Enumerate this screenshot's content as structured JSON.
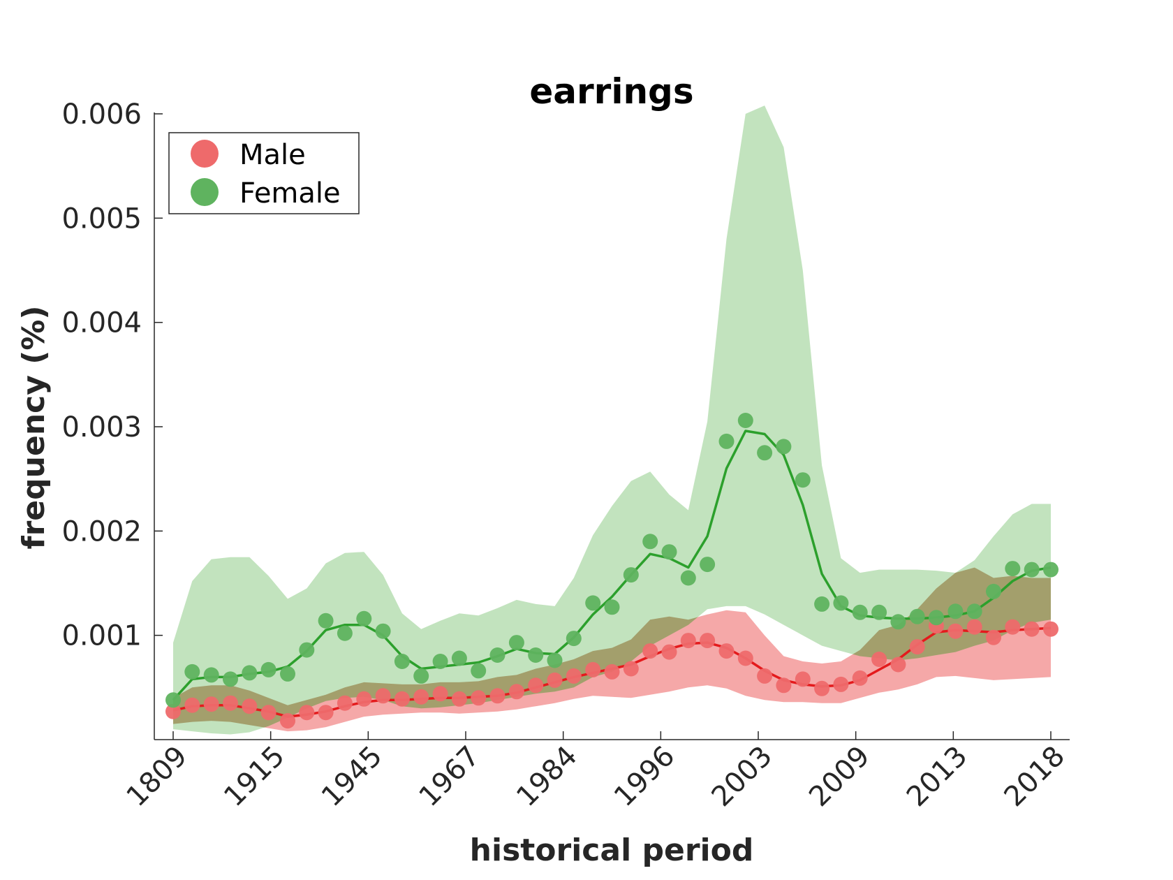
{
  "chart_data": {
    "type": "line",
    "title": "earrings",
    "xlabel": "historical period",
    "ylabel": "frequency (%)",
    "categories": [
      "1809",
      "1915",
      "1945",
      "1967",
      "1984",
      "1996",
      "2003",
      "2009",
      "2013",
      "2018"
    ],
    "point_count": 47,
    "ylim": [
      0,
      0.006
    ],
    "yticks": [
      0.001,
      0.002,
      0.003,
      0.004,
      0.005,
      0.006
    ],
    "ytick_labels": [
      "0.001",
      "0.002",
      "0.003",
      "0.004",
      "0.005",
      "0.006"
    ],
    "legend_position": "top-left",
    "grid": false,
    "series": [
      {
        "name": "Male",
        "color": "#e41a1c",
        "marker_color": "#ee6a6b",
        "band_color": "#f4a3a3",
        "points": [
          0.00027,
          0.00033,
          0.00034,
          0.00035,
          0.00032,
          0.00026,
          0.00018,
          0.00026,
          0.00026,
          0.00035,
          0.00039,
          0.00042,
          0.00039,
          0.00041,
          0.00044,
          0.00039,
          0.0004,
          0.00042,
          0.00046,
          0.00052,
          0.00057,
          0.00061,
          0.00067,
          0.00065,
          0.00068,
          0.00085,
          0.00084,
          0.00095,
          0.00095,
          0.00085,
          0.00078,
          0.00061,
          0.00052,
          0.00058,
          0.00049,
          0.00053,
          0.00059,
          0.00077,
          0.00072,
          0.00089,
          0.00109,
          0.00104,
          0.00108,
          0.00098,
          0.00108,
          0.00106,
          0.00106
        ],
        "line": [
          0.00028,
          0.00032,
          0.00033,
          0.00033,
          0.0003,
          0.00027,
          0.00022,
          0.00024,
          0.00027,
          0.00032,
          0.00036,
          0.00038,
          0.00038,
          0.00039,
          0.0004,
          0.0004,
          0.00041,
          0.00042,
          0.00045,
          0.0005,
          0.00055,
          0.0006,
          0.00064,
          0.00068,
          0.00072,
          0.0008,
          0.00087,
          0.00092,
          0.00093,
          0.00088,
          0.00078,
          0.00066,
          0.00057,
          0.00053,
          0.00051,
          0.00052,
          0.00057,
          0.00067,
          0.00077,
          0.00091,
          0.00103,
          0.00105,
          0.00104,
          0.00103,
          0.00105,
          0.00106,
          0.00107
        ],
        "band_low": [
          0.00015,
          0.00017,
          0.00018,
          0.00017,
          0.00014,
          0.00011,
          8e-05,
          9e-05,
          0.00012,
          0.00017,
          0.00022,
          0.00024,
          0.00025,
          0.00026,
          0.00026,
          0.00025,
          0.00026,
          0.00027,
          0.00029,
          0.00032,
          0.00035,
          0.00039,
          0.00042,
          0.00041,
          0.0004,
          0.00043,
          0.00046,
          0.0005,
          0.00052,
          0.00049,
          0.00042,
          0.00038,
          0.00036,
          0.00036,
          0.00035,
          0.00035,
          0.0004,
          0.00045,
          0.00048,
          0.00053,
          0.0006,
          0.00061,
          0.00059,
          0.00057,
          0.00058,
          0.00059,
          0.0006
        ],
        "band_high": [
          0.0004,
          0.0005,
          0.00052,
          0.00052,
          0.00047,
          0.0004,
          0.00033,
          0.00038,
          0.00043,
          0.0005,
          0.00055,
          0.00054,
          0.00053,
          0.00053,
          0.00055,
          0.00055,
          0.00056,
          0.0006,
          0.00062,
          0.00068,
          0.00072,
          0.00077,
          0.00085,
          0.00088,
          0.00096,
          0.00115,
          0.00118,
          0.00115,
          0.0012,
          0.00124,
          0.00122,
          0.001,
          0.0008,
          0.00075,
          0.00073,
          0.00075,
          0.00086,
          0.00105,
          0.0011,
          0.00125,
          0.00145,
          0.0016,
          0.00165,
          0.00155,
          0.00157,
          0.00155,
          0.00155
        ]
      },
      {
        "name": "Female",
        "color": "#2ca02c",
        "marker_color": "#5fb35f",
        "band_color": "#aed9a8",
        "points": [
          0.00038,
          0.00065,
          0.00062,
          0.00058,
          0.00064,
          0.00067,
          0.00063,
          0.00086,
          0.00114,
          0.00102,
          0.00116,
          0.00104,
          0.00075,
          0.00061,
          0.00075,
          0.00078,
          0.00066,
          0.00081,
          0.00093,
          0.00081,
          0.00076,
          0.00097,
          0.00131,
          0.00127,
          0.00158,
          0.0019,
          0.0018,
          0.00155,
          0.00168,
          0.00286,
          0.00306,
          0.00275,
          0.00281,
          0.00249,
          0.0013,
          0.00131,
          0.00122,
          0.00122,
          0.00113,
          0.00118,
          0.00117,
          0.00123,
          0.00123,
          0.00142,
          0.00164,
          0.00163,
          0.00163
        ],
        "line": [
          0.00038,
          0.00058,
          0.0006,
          0.0006,
          0.00063,
          0.00065,
          0.0007,
          0.00085,
          0.00105,
          0.0011,
          0.0011,
          0.001,
          0.0008,
          0.00068,
          0.0007,
          0.00072,
          0.00074,
          0.0008,
          0.00087,
          0.00083,
          0.00082,
          0.00098,
          0.0012,
          0.00137,
          0.00158,
          0.00178,
          0.00174,
          0.00165,
          0.00195,
          0.0026,
          0.00296,
          0.00293,
          0.00273,
          0.00225,
          0.00159,
          0.00128,
          0.00119,
          0.00117,
          0.00116,
          0.00116,
          0.00117,
          0.00119,
          0.00123,
          0.00136,
          0.00152,
          0.00162,
          0.00165
        ],
        "band_low": [
          0.0001,
          8e-05,
          6e-05,
          5e-05,
          7e-05,
          0.00013,
          0.00021,
          0.0003,
          0.00037,
          0.0004,
          0.00041,
          0.00038,
          0.00032,
          0.0003,
          0.00031,
          0.00033,
          0.00035,
          0.00038,
          0.00041,
          0.00044,
          0.00046,
          0.0005,
          0.0006,
          0.00065,
          0.00075,
          0.0009,
          0.001,
          0.0011,
          0.00125,
          0.00128,
          0.00128,
          0.0012,
          0.0011,
          0.001,
          0.0009,
          0.00085,
          0.0008,
          0.00078,
          0.00076,
          0.00078,
          0.00081,
          0.00084,
          0.0009,
          0.00095,
          0.00105,
          0.00112,
          0.00115
        ],
        "band_high": [
          0.00093,
          0.00152,
          0.00173,
          0.00175,
          0.00175,
          0.00157,
          0.00135,
          0.00145,
          0.00169,
          0.00179,
          0.0018,
          0.00158,
          0.00121,
          0.00106,
          0.00114,
          0.00121,
          0.00119,
          0.00126,
          0.00134,
          0.0013,
          0.00128,
          0.00155,
          0.00196,
          0.00224,
          0.00248,
          0.00257,
          0.00235,
          0.0022,
          0.00305,
          0.0048,
          0.006,
          0.00608,
          0.00568,
          0.0045,
          0.00263,
          0.00174,
          0.0016,
          0.00163,
          0.00163,
          0.00163,
          0.00162,
          0.0016,
          0.00172,
          0.00195,
          0.00216,
          0.00226,
          0.00226
        ]
      }
    ]
  }
}
